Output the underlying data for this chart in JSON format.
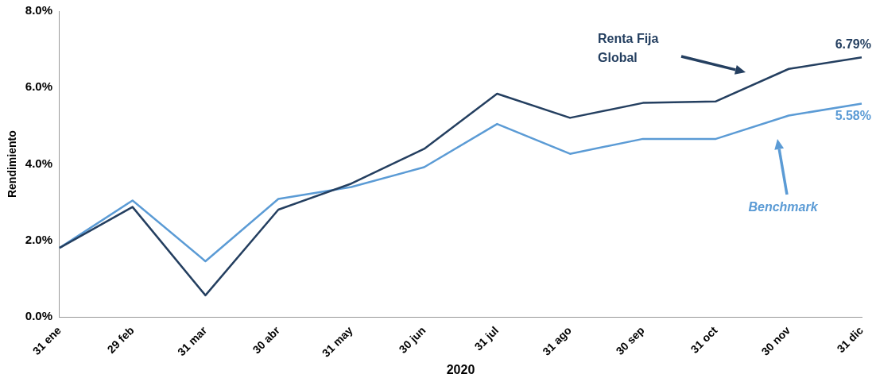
{
  "chart_data": {
    "type": "line",
    "xlabel": "2020",
    "ylabel": "Rendimiento",
    "categories": [
      "31 ene",
      "29 feb",
      "31 mar",
      "30 abr",
      "31 may",
      "30 jun",
      "31 jul",
      "31 ago",
      "30 sep",
      "31 oct",
      "30 nov",
      "31 dic"
    ],
    "series": [
      {
        "name": "Renta Fija Global",
        "color": "#243f60",
        "values": [
          1.81,
          2.88,
          0.57,
          2.81,
          3.49,
          4.4,
          5.84,
          5.21,
          5.6,
          5.64,
          6.49,
          6.79
        ],
        "value_labels": [
          null,
          null,
          null,
          null,
          null,
          null,
          null,
          null,
          null,
          null,
          null,
          "6.79%"
        ]
      },
      {
        "name": "Benchmark",
        "color": "#5b9bd5",
        "values": [
          1.81,
          3.05,
          1.46,
          3.09,
          3.4,
          3.92,
          5.05,
          4.27,
          4.66,
          4.66,
          5.27,
          5.58
        ],
        "value_labels": [
          null,
          null,
          null,
          null,
          null,
          null,
          null,
          null,
          null,
          null,
          null,
          "5.58%"
        ]
      }
    ],
    "ylim": [
      0,
      8
    ],
    "yticks": [
      {
        "value": 0,
        "label": "0.0%"
      },
      {
        "value": 2,
        "label": "2.0%"
      },
      {
        "value": 4,
        "label": "4.0%"
      },
      {
        "value": 6,
        "label": "6.0%"
      },
      {
        "value": 8,
        "label": "8.0%"
      }
    ],
    "grid": false,
    "legend": "top right",
    "marker": "none",
    "line_style": "solid"
  }
}
